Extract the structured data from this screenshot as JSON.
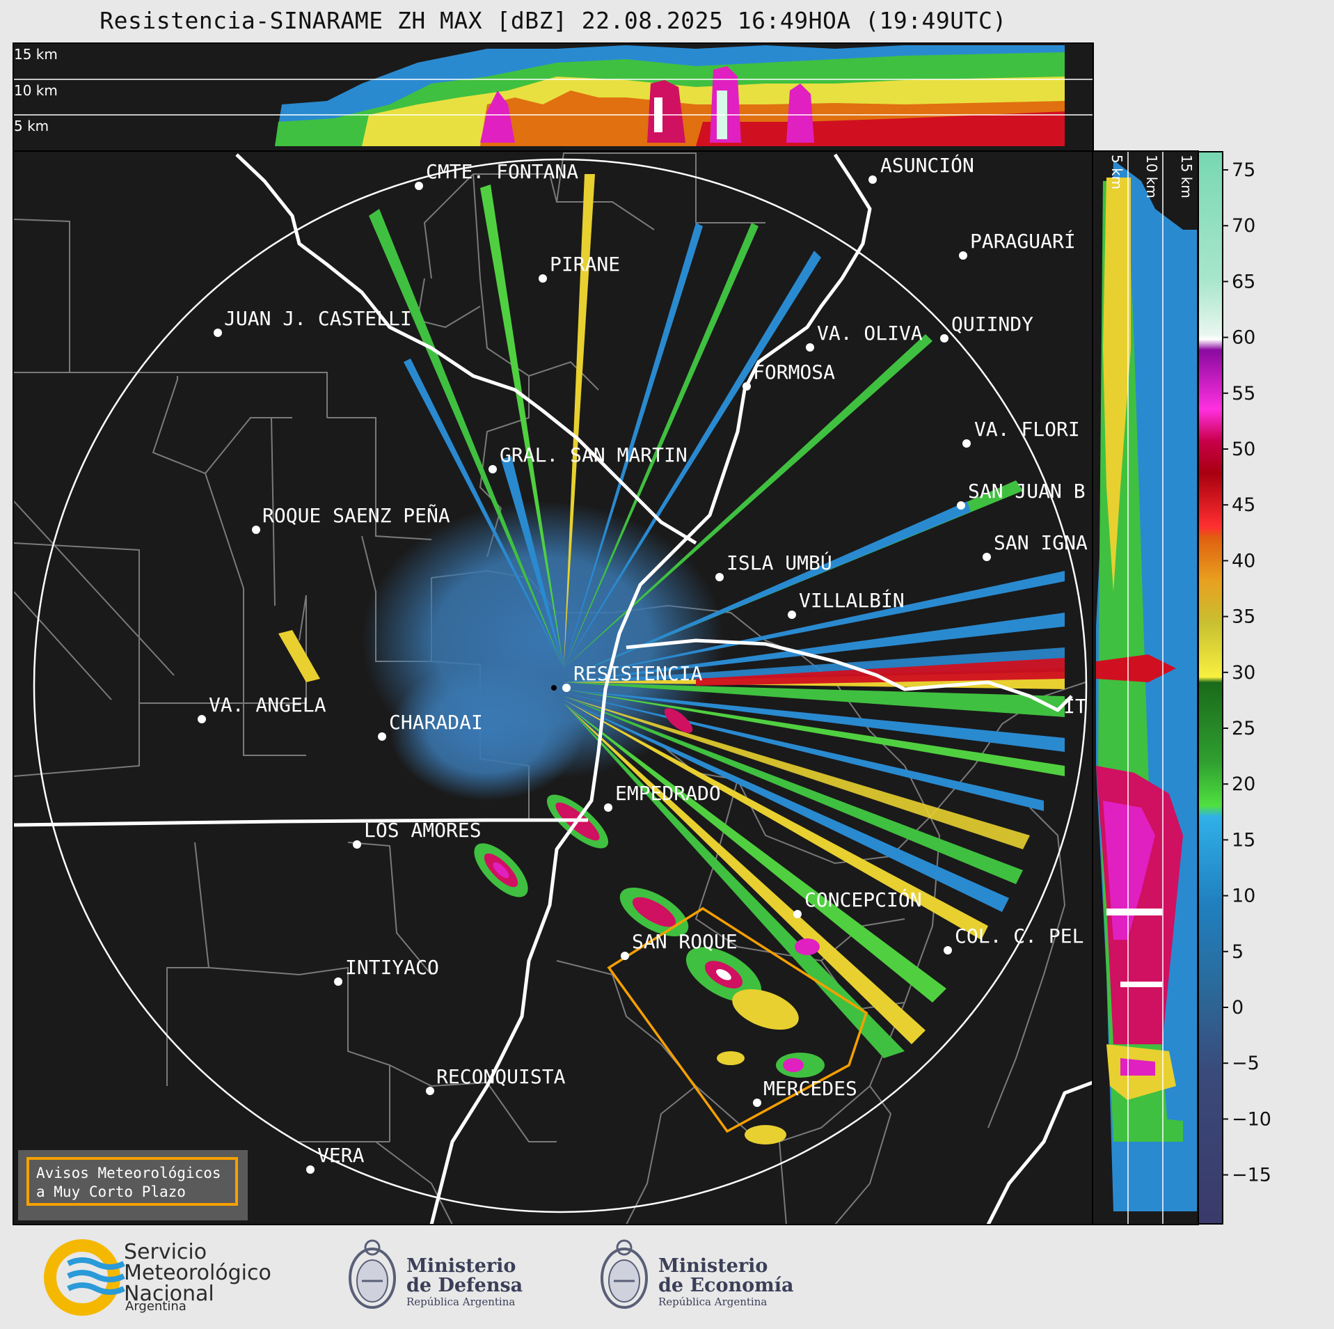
{
  "header": {
    "title": "Resistencia-SINARAME ZH MAX [dBZ] 22.08.2025 16:49HOA (19:49UTC)"
  },
  "top_panel": {
    "height_labels": [
      "15 km",
      "10 km",
      "5 km"
    ]
  },
  "side_panel": {
    "height_labels": [
      "5 km",
      "10 km",
      "15 km"
    ]
  },
  "colorbar": {
    "ticks": [
      "75",
      "70",
      "65",
      "60",
      "55",
      "50",
      "45",
      "40",
      "35",
      "30",
      "25",
      "20",
      "15",
      "10",
      "5",
      "0",
      "−5",
      "−10",
      "−15"
    ]
  },
  "cities": [
    {
      "name": "CMTE. FONTANA"
    },
    {
      "name": "ASUNCIÓN"
    },
    {
      "name": "PARAGUARÍ"
    },
    {
      "name": "PIRANE"
    },
    {
      "name": "JUAN J. CASTELLI"
    },
    {
      "name": "VA. OLIVA"
    },
    {
      "name": "QUIINDY"
    },
    {
      "name": "FORMOSA"
    },
    {
      "name": "VA. FLORI"
    },
    {
      "name": "GRAL. SAN MARTIN"
    },
    {
      "name": "SAN JUAN B"
    },
    {
      "name": "ROQUE SAENZ PEÑA"
    },
    {
      "name": "SAN IGNA"
    },
    {
      "name": "ISLA UMBÚ"
    },
    {
      "name": "VILLALBÍN"
    },
    {
      "name": "RESISTENCIA"
    },
    {
      "name": "VA. ANGELA"
    },
    {
      "name": "CHARADAI"
    },
    {
      "name": "IT"
    },
    {
      "name": "EMPEDRADO"
    },
    {
      "name": "LOS AMORES"
    },
    {
      "name": "CONCEPCIÓN"
    },
    {
      "name": "SAN ROQUE"
    },
    {
      "name": "COL. C. PEL"
    },
    {
      "name": "INTIYACO"
    },
    {
      "name": "RECONQUISTA"
    },
    {
      "name": "MERCEDES"
    },
    {
      "name": "VERA"
    }
  ],
  "legend_box": {
    "line1": "Avisos Meteorológicos",
    "line2": "a Muy Corto Plazo"
  },
  "footer": {
    "smn": {
      "line1": "Servicio",
      "line2": "Meteorológico",
      "line3": "Nacional",
      "sub": "Argentina"
    },
    "defensa": {
      "line1": "Ministerio",
      "line2": "de Defensa",
      "sub": "República Argentina"
    },
    "economia": {
      "line1": "Ministerio",
      "line2": "de Economía",
      "sub": "República Argentina"
    }
  },
  "colors": {
    "background": "#1a1a1a",
    "river": "#ffffff",
    "warning_polygon": "#f5a000",
    "boundaries": "#808080"
  }
}
